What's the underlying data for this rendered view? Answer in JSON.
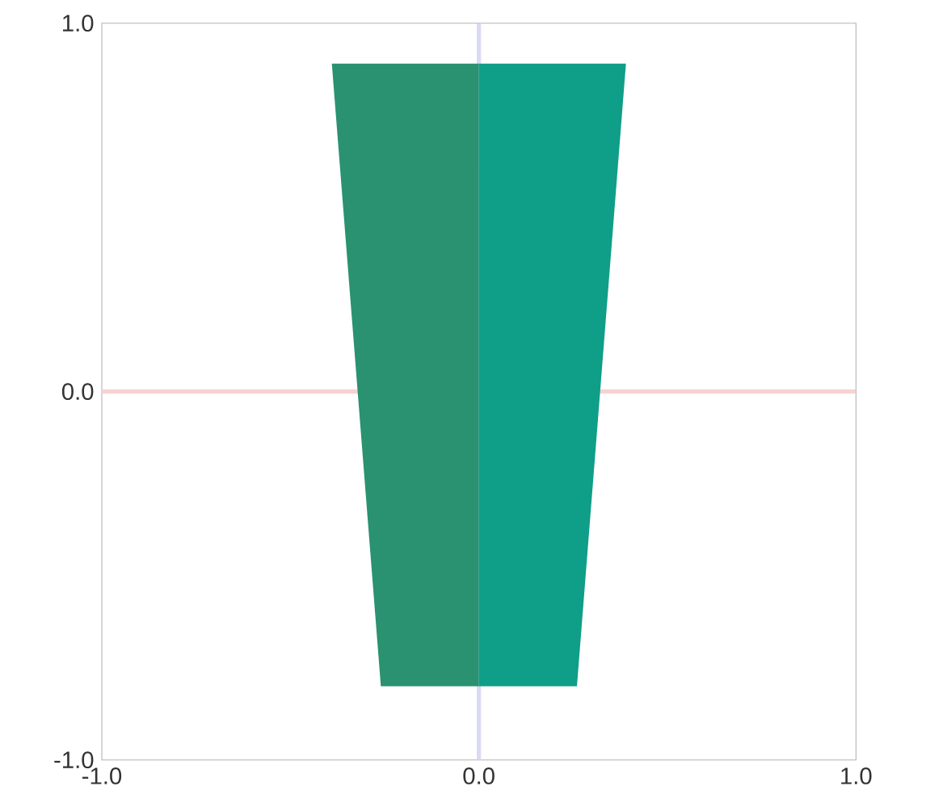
{
  "chart_data": {
    "type": "area",
    "series": [
      {
        "color": "#2a9270",
        "x": [
          -0.39,
          0,
          0,
          -0.26
        ],
        "values": [
          0.89,
          0.89,
          -0.8,
          -0.8
        ]
      },
      {
        "color": "#0f9e88",
        "x": [
          0,
          0.39,
          0.26,
          0
        ],
        "values": [
          0.89,
          0.89,
          -0.8,
          -0.8
        ]
      }
    ],
    "xlim": [
      -1,
      1
    ],
    "ylim": [
      -1,
      1
    ],
    "xticks": [
      {
        "value": -1,
        "label": "-1.0"
      },
      {
        "value": 0,
        "label": "0.0"
      },
      {
        "value": 1,
        "label": "1.0"
      }
    ],
    "yticks": [
      {
        "value": -1,
        "label": "-1.0"
      },
      {
        "value": 0,
        "label": "0.0"
      },
      {
        "value": 1,
        "label": "1.0"
      }
    ],
    "ref_lines": [
      {
        "axis": "y",
        "value": 0,
        "color": "#f6d2d2"
      },
      {
        "axis": "x",
        "value": 0,
        "color": "#dadaf6"
      }
    ],
    "grid": false
  }
}
